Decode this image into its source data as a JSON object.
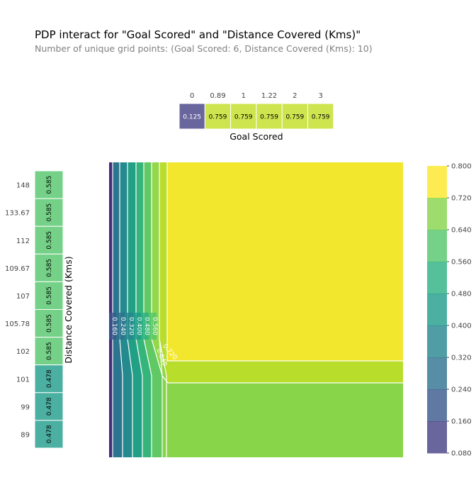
{
  "header": {
    "title": "PDP interact for \"Goal Scored\" and \"Distance Covered (Kms)\"",
    "subtitle": "Number of unique grid points: (Goal Scored: 6, Distance Covered (Kms): 10)"
  },
  "chart_data": {
    "type": "heatmap",
    "title": "PDP interact for \"Goal Scored\" and \"Distance Covered (Kms)\"",
    "subtitle": "Number of unique grid points: (Goal Scored: 6, Distance Covered (Kms): 10)",
    "goal_scored": {
      "xlabel": "Goal Scored",
      "categories": [
        "0",
        "0.89",
        "1",
        "1.22",
        "2",
        "3"
      ],
      "values": [
        0.125,
        0.759,
        0.759,
        0.759,
        0.759,
        0.759
      ],
      "value_labels": [
        "0.125",
        "0.759",
        "0.759",
        "0.759",
        "0.759",
        "0.759"
      ]
    },
    "distance_covered": {
      "ylabel": "Distance Covered (Kms)",
      "categories": [
        "148",
        "133.67",
        "112",
        "109.67",
        "107",
        "105.78",
        "102",
        "101",
        "99",
        "89"
      ],
      "values": [
        0.585,
        0.585,
        0.585,
        0.585,
        0.585,
        0.585,
        0.585,
        0.478,
        0.478,
        0.478
      ],
      "value_labels": [
        "0.585",
        "0.585",
        "0.585",
        "0.585",
        "0.585",
        "0.585",
        "0.585",
        "0.478",
        "0.478",
        "0.478"
      ]
    },
    "contour": {
      "levels": [
        0.08,
        0.16,
        0.24,
        0.32,
        0.4,
        0.48,
        0.56,
        0.64,
        0.72,
        0.8
      ],
      "line_labels": [
        "0.160",
        "0.240",
        "0.320",
        "0.400",
        "0.480",
        "0.560"
      ],
      "diag_labels": [
        "0.640",
        "0.720"
      ]
    },
    "colorbar": {
      "ticks": [
        "0.800",
        "0.720",
        "0.640",
        "0.560",
        "0.480",
        "0.400",
        "0.320",
        "0.240",
        "0.160",
        "0.080"
      ],
      "colors": [
        "#fde725",
        "#c2df23",
        "#86d549",
        "#52c569",
        "#2ab07f",
        "#1e9b8a",
        "#25858e",
        "#2d708e",
        "#38588c",
        "#433e85",
        "#482173"
      ]
    },
    "colormap": "viridis",
    "alpha": 0.8,
    "grid": false
  }
}
